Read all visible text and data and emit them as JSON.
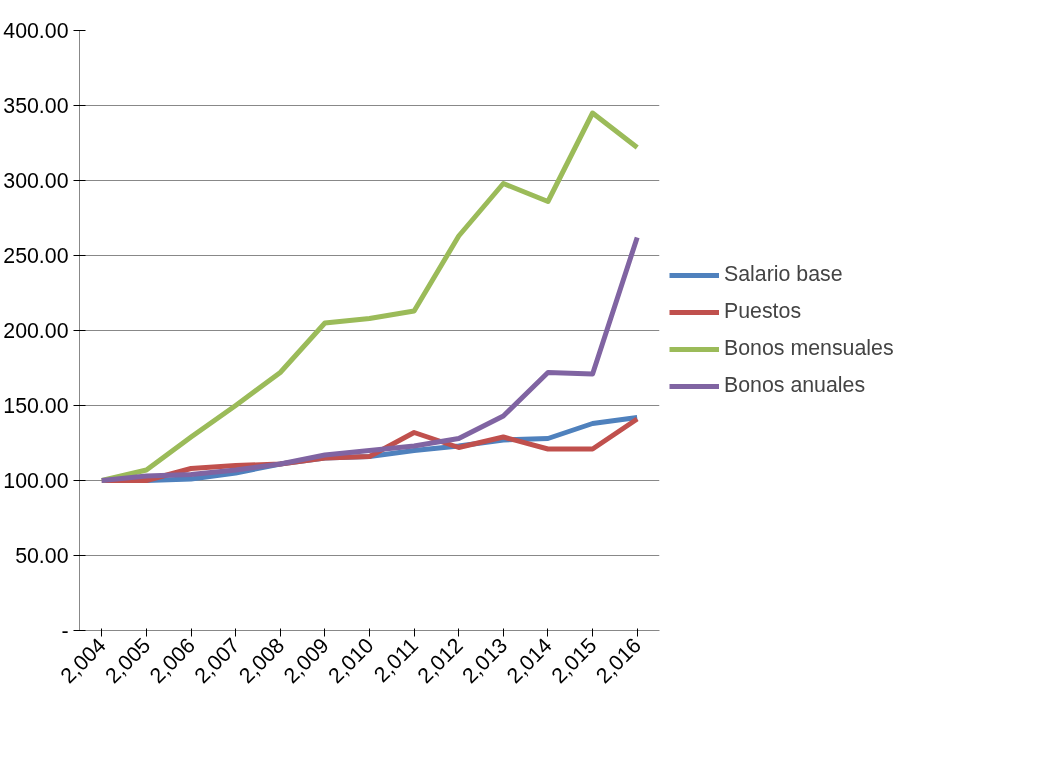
{
  "chart_data": {
    "type": "line",
    "categories": [
      "2,004",
      "2,005",
      "2,006",
      "2,007",
      "2,008",
      "2,009",
      "2,010",
      "2,011",
      "2,012",
      "2,013",
      "2,014",
      "2,015",
      "2,016"
    ],
    "series": [
      {
        "name": "Salario base",
        "color": "#4f81bd",
        "values": [
          100,
          100,
          101,
          105,
          111,
          115,
          116,
          120,
          123,
          127,
          128,
          138,
          142
        ]
      },
      {
        "name": "Puestos",
        "color": "#c0504d",
        "values": [
          100,
          100,
          108,
          110,
          111,
          115,
          116,
          132,
          122,
          129,
          121,
          121,
          141
        ]
      },
      {
        "name": "Bonos mensuales",
        "color": "#9bbb59",
        "values": [
          100,
          107,
          129,
          150,
          172,
          205,
          208,
          213,
          263,
          298,
          286,
          345,
          322
        ]
      },
      {
        "name": "Bonos anuales",
        "color": "#8064a2",
        "values": [
          100,
          103,
          104,
          107,
          111,
          117,
          120,
          123,
          128,
          143,
          172,
          171,
          262
        ]
      }
    ],
    "ylim": [
      0,
      400
    ],
    "yticks": [
      {
        "value": 0,
        "label": "-"
      },
      {
        "value": 50,
        "label": "50.00"
      },
      {
        "value": 100,
        "label": "100.00"
      },
      {
        "value": 150,
        "label": "150.00"
      },
      {
        "value": 200,
        "label": "200.00"
      },
      {
        "value": 250,
        "label": "250.00"
      },
      {
        "value": 300,
        "label": "300.00"
      },
      {
        "value": 350,
        "label": "350.00"
      },
      {
        "value": 400,
        "label": "400.00"
      }
    ],
    "grid": "y",
    "legend": "right",
    "marker": "none",
    "line_style": "solid"
  }
}
